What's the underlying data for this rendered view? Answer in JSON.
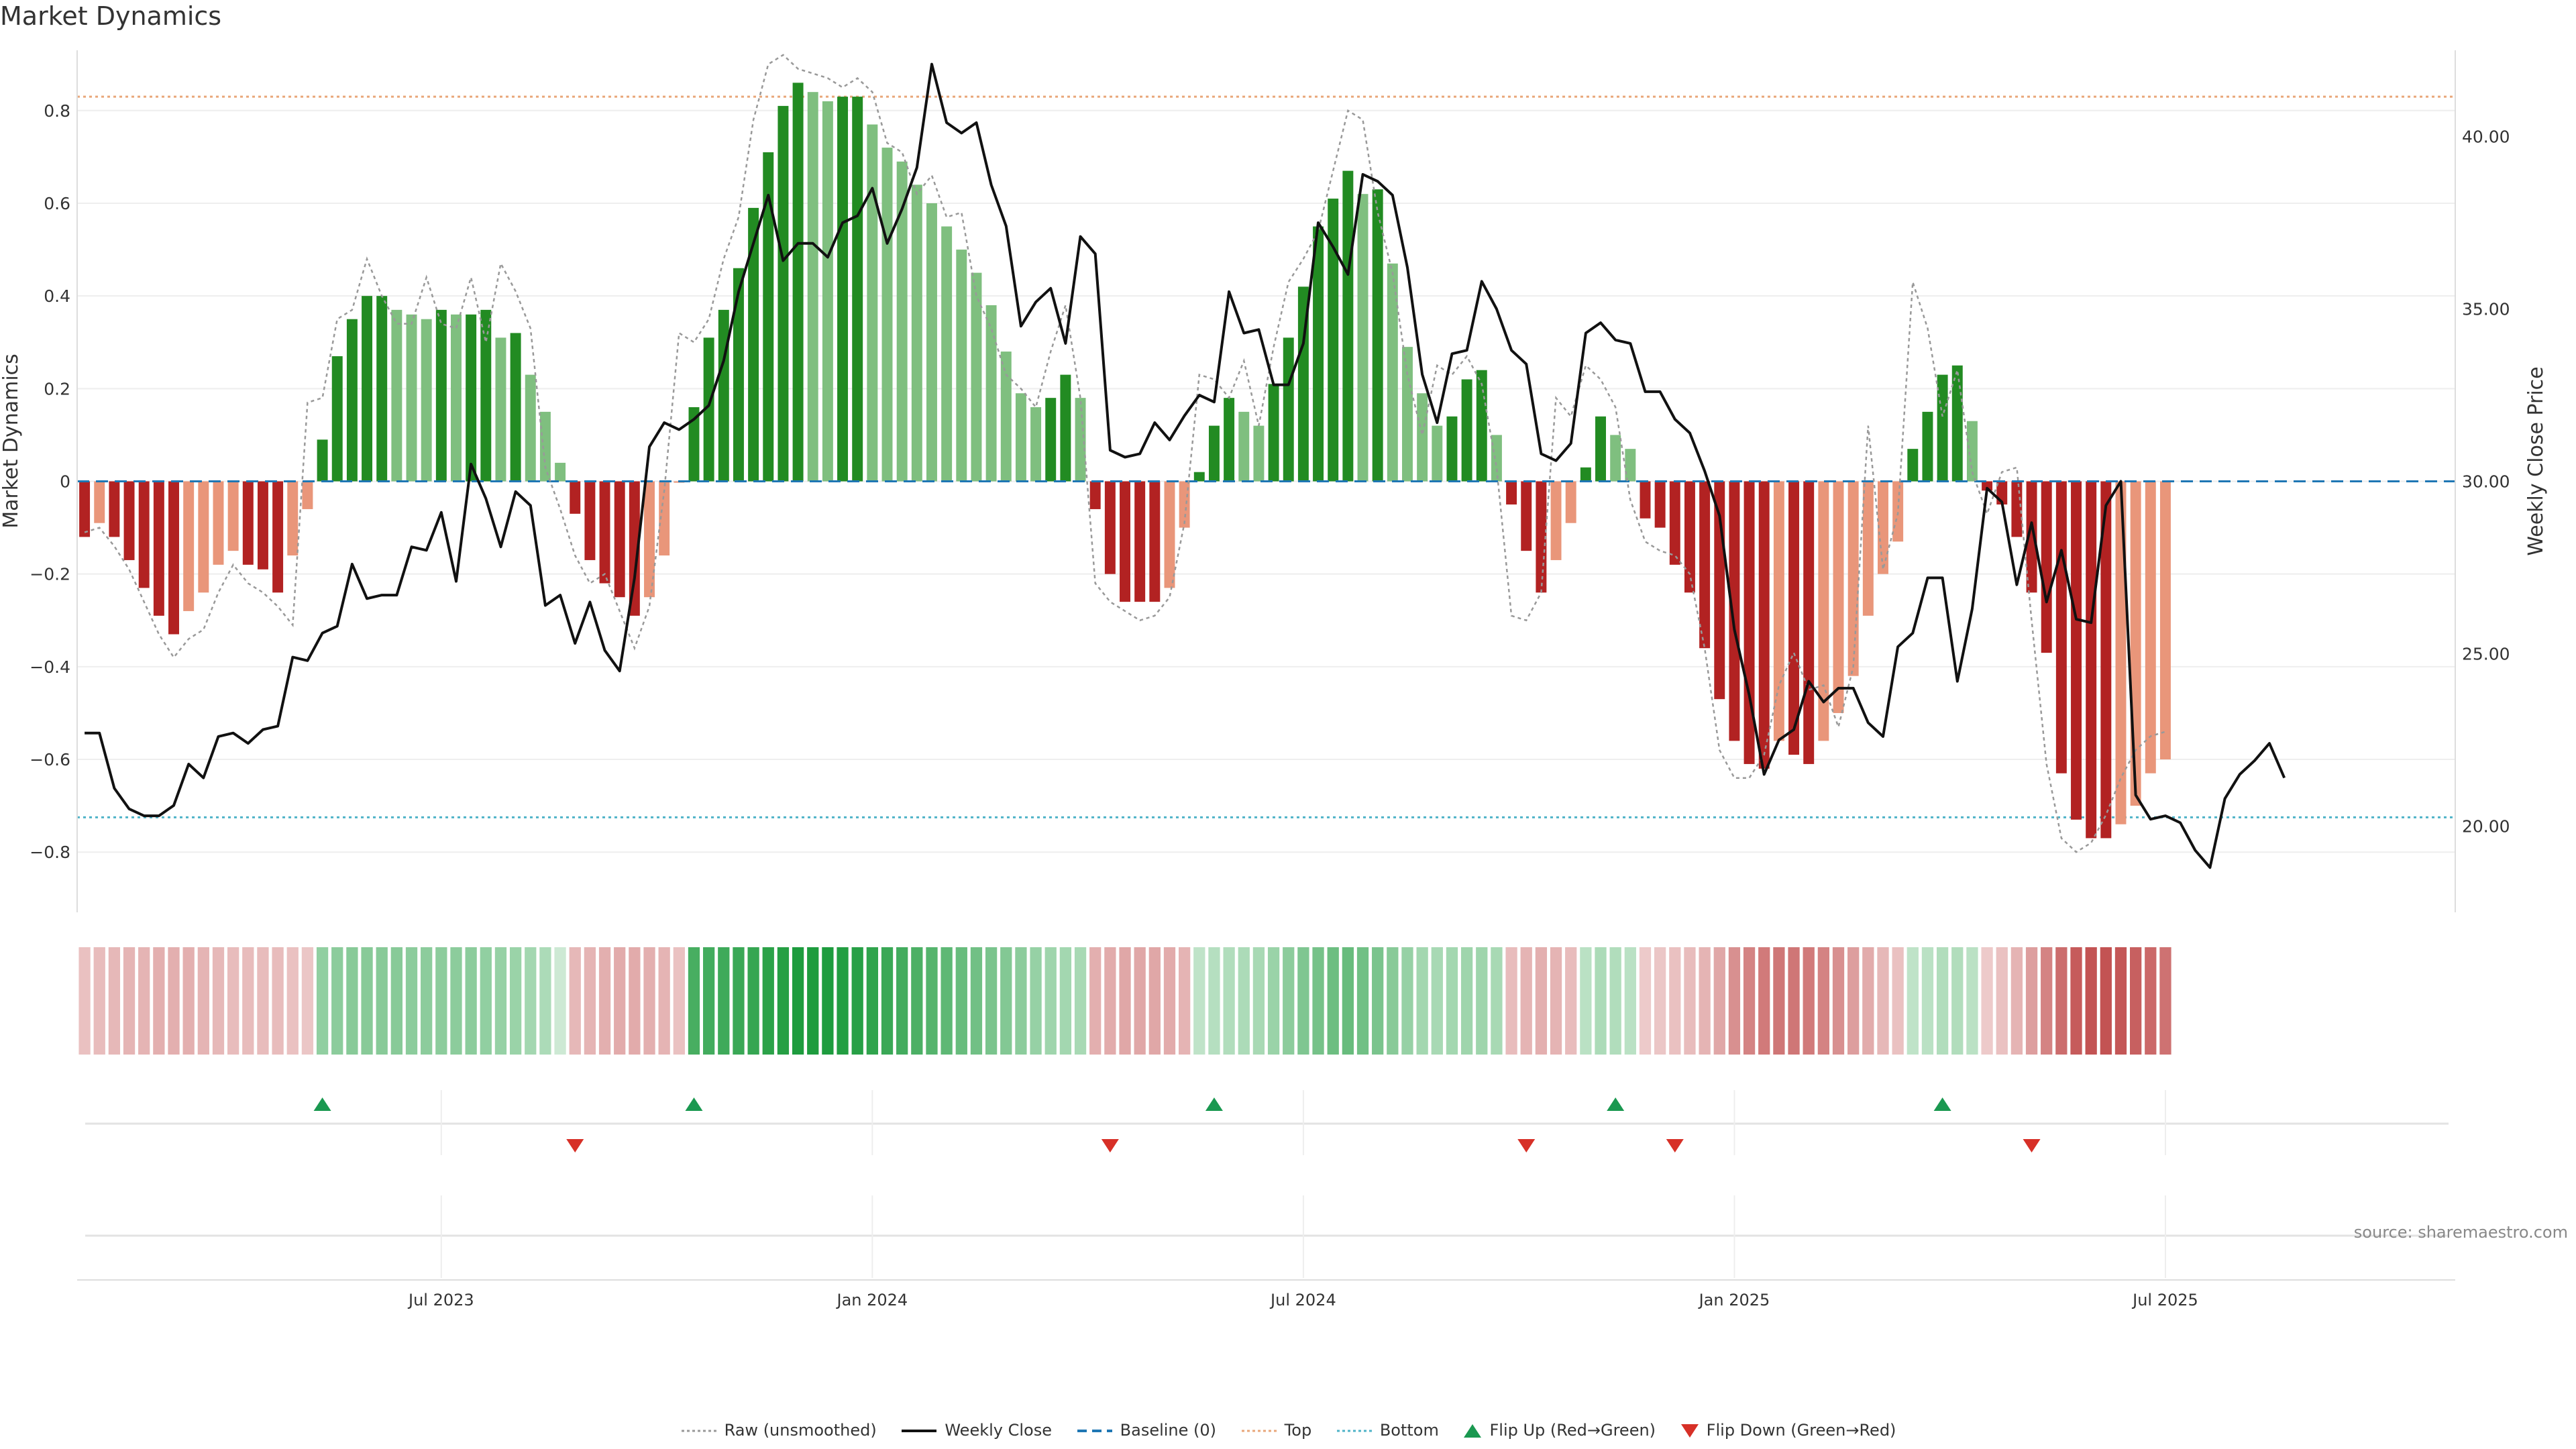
{
  "title": "Market Dynamics",
  "source": "source: sharemaestro.com",
  "colors": {
    "up_strong": "#228B22",
    "up_weak": "#7FBF7F",
    "down_strong": "#B22222",
    "down_weak": "#E9967A",
    "price": "#111111",
    "raw": "#999999",
    "baseline": "#1f77b4",
    "top": "#E9A77A",
    "bottom": "#4FB3C8",
    "flip_up": "#1a9850",
    "flip_down": "#d73027"
  },
  "chart_data": {
    "type": "bar",
    "ylabel_left": "Market Dynamics",
    "ylabel_right": "Weekly Close Price",
    "ylim_left": [
      -0.93,
      0.93
    ],
    "ylim_right": [
      17.5,
      42.5
    ],
    "yticks_left": [
      {
        "v": 0.8,
        "label": "0.8"
      },
      {
        "v": 0.6,
        "label": "0.6"
      },
      {
        "v": 0.4,
        "label": "0.4"
      },
      {
        "v": 0.2,
        "label": "0.2"
      },
      {
        "v": 0,
        "label": "0"
      },
      {
        "v": -0.2,
        "label": "−0.2"
      },
      {
        "v": -0.4,
        "label": "−0.4"
      },
      {
        "v": -0.6,
        "label": "−0.6"
      },
      {
        "v": -0.8,
        "label": "−0.8"
      }
    ],
    "yticks_right": [
      {
        "v": 40,
        "label": "40.00"
      },
      {
        "v": 35,
        "label": "35.00"
      },
      {
        "v": 30,
        "label": "30.00"
      },
      {
        "v": 25,
        "label": "25.00"
      },
      {
        "v": 20,
        "label": "20.00"
      }
    ],
    "xticks": [
      {
        "week": 24,
        "label": "Jul 2023"
      },
      {
        "week": 53,
        "label": "Jan 2024"
      },
      {
        "week": 82,
        "label": "Jul 2024"
      },
      {
        "week": 111,
        "label": "Jan 2025"
      },
      {
        "week": 140,
        "label": "Jul 2025"
      }
    ],
    "top_line": 0.83,
    "bottom_line": -0.725,
    "baseline": 0,
    "weeks": 160,
    "momentum": [
      -0.12,
      -0.09,
      -0.12,
      -0.17,
      -0.23,
      -0.29,
      -0.33,
      -0.28,
      -0.24,
      -0.18,
      -0.15,
      -0.18,
      -0.19,
      -0.24,
      -0.16,
      -0.06,
      0.09,
      0.27,
      0.35,
      0.4,
      0.4,
      0.37,
      0.36,
      0.35,
      0.37,
      0.36,
      0.36,
      0.37,
      0.31,
      0.32,
      0.23,
      0.15,
      0.04,
      -0.07,
      -0.17,
      -0.22,
      -0.25,
      -0.29,
      -0.25,
      -0.16,
      -0.003,
      0.16,
      0.31,
      0.37,
      0.46,
      0.59,
      0.71,
      0.81,
      0.86,
      0.84,
      0.82,
      0.83,
      0.83,
      0.77,
      0.72,
      0.69,
      0.64,
      0.6,
      0.55,
      0.5,
      0.45,
      0.38,
      0.28,
      0.19,
      0.16,
      0.18,
      0.23,
      0.18,
      -0.06,
      -0.2,
      -0.26,
      -0.26,
      -0.26,
      -0.23,
      -0.1,
      0.02,
      0.12,
      0.18,
      0.15,
      0.12,
      0.21,
      0.31,
      0.42,
      0.55,
      0.61,
      0.67,
      0.62,
      0.63,
      0.47,
      0.29,
      0.19,
      0.12,
      0.14,
      0.22,
      0.24,
      0.1,
      -0.05,
      -0.15,
      -0.24,
      -0.17,
      -0.09,
      0.03,
      0.14,
      0.1,
      0.07,
      -0.08,
      -0.1,
      -0.18,
      -0.24,
      -0.36,
      -0.47,
      -0.56,
      -0.61,
      -0.62,
      -0.56,
      -0.59,
      -0.61,
      -0.56,
      -0.5,
      -0.42,
      -0.29,
      -0.2,
      -0.13,
      0.07,
      0.15,
      0.23,
      0.25,
      0.13,
      -0.02,
      -0.05,
      -0.12,
      -0.24,
      -0.37,
      -0.63,
      -0.73,
      -0.77,
      -0.77,
      -0.74,
      -0.7,
      -0.63,
      -0.6
    ],
    "price": [
      22.7,
      22.7,
      21.1,
      20.5,
      20.3,
      20.3,
      20.6,
      21.8,
      21.4,
      22.6,
      22.7,
      22.4,
      22.8,
      22.9,
      24.9,
      24.8,
      25.6,
      25.8,
      27.6,
      26.6,
      26.7,
      26.7,
      28.1,
      28.0,
      29.1,
      27.1,
      30.5,
      29.5,
      28.1,
      29.7,
      29.3,
      26.4,
      26.7,
      25.3,
      26.5,
      25.1,
      24.5,
      27.2,
      31.0,
      31.7,
      31.5,
      31.8,
      32.2,
      33.5,
      35.5,
      36.9,
      38.3,
      36.4,
      36.9,
      36.9,
      36.5,
      37.5,
      37.7,
      38.5,
      36.9,
      37.9,
      39.1,
      42.1,
      40.4,
      40.1,
      40.4,
      38.6,
      37.4,
      34.5,
      35.2,
      35.6,
      34.0,
      37.1,
      36.6,
      30.9,
      30.7,
      30.8,
      31.7,
      31.2,
      31.9,
      32.5,
      32.3,
      35.5,
      34.3,
      34.4,
      32.8,
      32.8,
      34.0,
      37.5,
      36.8,
      36.0,
      38.9,
      38.7,
      38.3,
      36.2,
      33.1,
      31.7,
      33.7,
      33.8,
      35.8,
      35.0,
      33.8,
      33.4,
      30.8,
      30.6,
      31.1,
      34.3,
      34.6,
      34.1,
      34.0,
      32.6,
      32.6,
      31.8,
      31.4,
      30.3,
      29.0,
      25.7,
      23.8,
      21.5,
      22.5,
      22.8,
      24.2,
      23.6,
      24.0,
      24.0,
      23.0,
      22.6,
      25.2,
      25.6,
      27.2,
      27.2,
      24.2,
      26.3,
      29.8,
      29.4,
      27.0,
      28.8,
      26.5,
      28.0,
      26.0,
      25.9,
      29.3,
      30.0,
      20.9,
      20.2,
      20.3,
      20.1,
      19.3,
      18.8,
      20.8,
      21.5,
      21.9,
      22.4,
      21.4
    ],
    "raw": [
      -0.11,
      -0.1,
      -0.14,
      -0.19,
      -0.26,
      -0.33,
      -0.38,
      -0.34,
      -0.32,
      -0.24,
      -0.18,
      -0.22,
      -0.24,
      -0.27,
      -0.31,
      0.17,
      0.18,
      0.35,
      0.37,
      0.48,
      0.4,
      0.34,
      0.34,
      0.44,
      0.34,
      0.33,
      0.44,
      0.3,
      0.47,
      0.41,
      0.33,
      0.03,
      -0.06,
      -0.16,
      -0.22,
      -0.2,
      -0.28,
      -0.36,
      -0.27,
      -0.02,
      0.32,
      0.3,
      0.35,
      0.48,
      0.57,
      0.78,
      0.9,
      0.92,
      0.89,
      0.88,
      0.87,
      0.85,
      0.87,
      0.84,
      0.73,
      0.71,
      0.62,
      0.66,
      0.57,
      0.58,
      0.4,
      0.33,
      0.23,
      0.2,
      0.16,
      0.28,
      0.38,
      0.18,
      -0.22,
      -0.26,
      -0.28,
      -0.3,
      -0.29,
      -0.25,
      -0.09,
      0.23,
      0.22,
      0.18,
      0.26,
      0.12,
      0.29,
      0.43,
      0.48,
      0.54,
      0.67,
      0.8,
      0.78,
      0.58,
      0.45,
      0.23,
      0.1,
      0.25,
      0.23,
      0.27,
      0.21,
      0.03,
      -0.29,
      -0.3,
      -0.24,
      0.18,
      0.14,
      0.25,
      0.22,
      0.16,
      -0.04,
      -0.13,
      -0.15,
      -0.16,
      -0.2,
      -0.36,
      -0.58,
      -0.64,
      -0.64,
      -0.59,
      -0.44,
      -0.37,
      -0.45,
      -0.44,
      -0.53,
      -0.4,
      0.12,
      -0.19,
      -0.07,
      0.43,
      0.33,
      0.14,
      0.24,
      0.02,
      -0.07,
      0.02,
      0.03,
      -0.3,
      -0.61,
      -0.77,
      -0.8,
      -0.78,
      -0.72,
      -0.64,
      -0.58,
      -0.55,
      -0.54
    ],
    "strip_alpha": [
      0.28,
      0.3,
      0.32,
      0.34,
      0.34,
      0.36,
      0.36,
      0.36,
      0.34,
      0.32,
      0.3,
      0.3,
      0.3,
      0.3,
      0.28,
      0.26,
      0.48,
      0.5,
      0.52,
      0.52,
      0.52,
      0.52,
      0.5,
      0.5,
      0.5,
      0.5,
      0.5,
      0.48,
      0.46,
      0.44,
      0.4,
      0.36,
      0.22,
      0.32,
      0.34,
      0.36,
      0.38,
      0.38,
      0.36,
      0.34,
      0.28,
      0.8,
      0.82,
      0.84,
      0.86,
      0.88,
      0.92,
      0.95,
      0.98,
      0.98,
      0.98,
      0.96,
      0.94,
      0.9,
      0.86,
      0.82,
      0.78,
      0.74,
      0.7,
      0.66,
      0.62,
      0.58,
      0.54,
      0.5,
      0.46,
      0.42,
      0.4,
      0.38,
      0.36,
      0.38,
      0.4,
      0.4,
      0.4,
      0.38,
      0.34,
      0.28,
      0.32,
      0.34,
      0.36,
      0.38,
      0.44,
      0.5,
      0.56,
      0.6,
      0.64,
      0.66,
      0.62,
      0.58,
      0.52,
      0.46,
      0.4,
      0.38,
      0.4,
      0.42,
      0.42,
      0.38,
      0.3,
      0.34,
      0.36,
      0.34,
      0.3,
      0.3,
      0.36,
      0.34,
      0.3,
      0.24,
      0.26,
      0.28,
      0.3,
      0.34,
      0.4,
      0.5,
      0.56,
      0.6,
      0.62,
      0.62,
      0.6,
      0.56,
      0.5,
      0.44,
      0.38,
      0.32,
      0.28,
      0.28,
      0.3,
      0.34,
      0.34,
      0.3,
      0.24,
      0.28,
      0.34,
      0.44,
      0.56,
      0.66,
      0.74,
      0.78,
      0.78,
      0.76,
      0.72,
      0.68,
      0.64
    ],
    "flips_up": [
      16,
      41,
      76,
      103,
      125
    ],
    "flips_down": [
      33,
      69,
      97,
      107,
      131
    ]
  },
  "legend": [
    {
      "label": "Raw (unsmoothed)",
      "icon": "dotted-line-icon"
    },
    {
      "label": "Weekly Close",
      "icon": "solid-line-icon"
    },
    {
      "label": "Baseline (0)",
      "icon": "dashed-line-icon"
    },
    {
      "label": "Top",
      "icon": "dotted-line-icon"
    },
    {
      "label": "Bottom",
      "icon": "dotted-line-icon"
    },
    {
      "label": "Flip Up (Red→Green)",
      "icon": "triangle-up-icon"
    },
    {
      "label": "Flip Down (Green→Red)",
      "icon": "triangle-down-icon"
    }
  ]
}
